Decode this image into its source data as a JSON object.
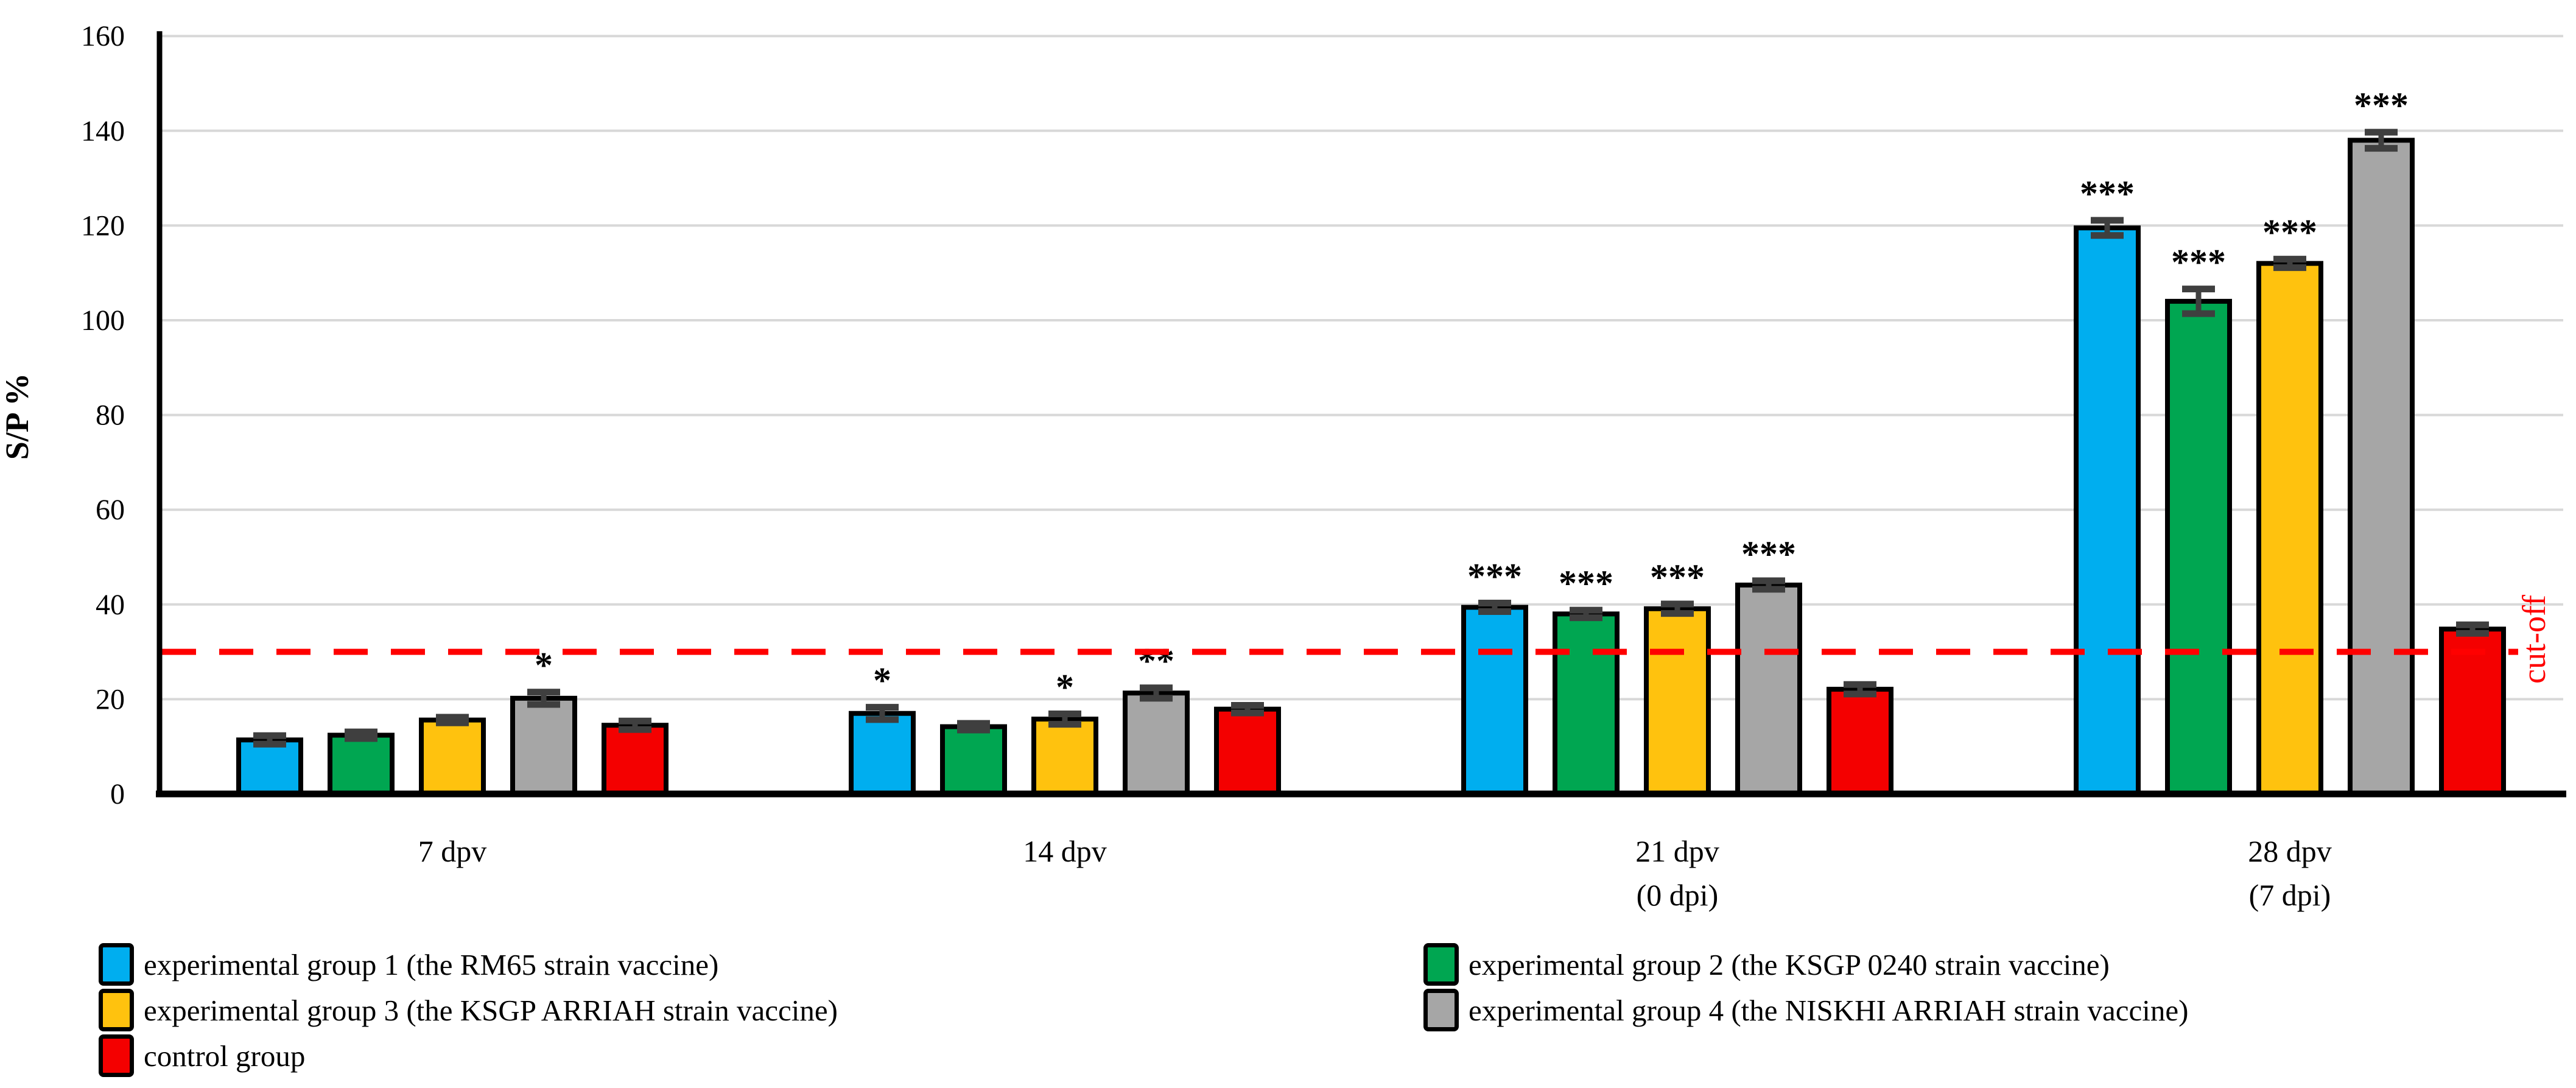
{
  "figure": {
    "background": "#FFFFFF"
  },
  "y_axis": {
    "title": "S/P %",
    "min": 0,
    "max": 160,
    "step": 20,
    "ticks": [
      "0",
      "20",
      "40",
      "60",
      "80",
      "100",
      "120",
      "140",
      "160"
    ]
  },
  "x_axis": {
    "labels": [
      [
        "7 dpv"
      ],
      [
        "14 dpv"
      ],
      [
        "21 dpv",
        "(0 dpi)"
      ],
      [
        "28 dpv",
        "(7 dpi)"
      ]
    ]
  },
  "cutoff": {
    "label": "cut-off",
    "value": 30,
    "color": "#FF0000"
  },
  "chart_data": {
    "type": "bar",
    "title": "",
    "xlabel": "",
    "ylabel": "S/P %",
    "ylim": [
      0,
      160
    ],
    "ytick_step": 20,
    "grid": "horizontal",
    "legend_position": "bottom-two-columns",
    "categories": [
      "7 dpv",
      "14 dpv",
      "21 dpv (0 dpi)",
      "28 dpv (7 dpi)"
    ],
    "cutoff_line": {
      "value": 30,
      "label": "cut-off",
      "style": "dashed",
      "color": "#FF0000"
    },
    "series": [
      {
        "name": "experimental group 1 (the RM65 strain vaccine)",
        "color": "#00AEEF",
        "values": [
          11.4,
          17.0,
          39.4,
          119.5
        ],
        "errors": [
          0.9,
          1.3,
          0.9,
          1.6
        ],
        "significance": [
          "",
          "*",
          "***",
          "***"
        ]
      },
      {
        "name": "experimental group 2 (the KSGP 0240 strain vaccine)",
        "color": "#00A651",
        "values": [
          12.4,
          14.2,
          38.0,
          104.0
        ],
        "errors": [
          0.7,
          0.7,
          0.8,
          2.6
        ],
        "significance": [
          "",
          "",
          "***",
          "***"
        ]
      },
      {
        "name": "experimental group 3 (the KSGP ARRIAH strain vaccine)",
        "color": "#FFC20E",
        "values": [
          15.6,
          15.8,
          39.1,
          112.0
        ],
        "errors": [
          0.6,
          1.1,
          1.0,
          0.9
        ],
        "significance": [
          "",
          "*",
          "***",
          "***"
        ]
      },
      {
        "name": "experimental group 4 (the NISKHI ARRIAH strain vaccine)",
        "color": "#A6A6A6",
        "values": [
          20.2,
          21.3,
          44.1,
          138.0
        ],
        "errors": [
          1.3,
          1.1,
          0.9,
          1.7
        ],
        "significance": [
          "*",
          "**",
          "***",
          "***"
        ]
      },
      {
        "name": "control group",
        "color": "#F40000",
        "values": [
          14.5,
          17.9,
          22.1,
          34.8
        ],
        "errors": [
          0.9,
          0.8,
          1.0,
          0.9
        ],
        "significance": [
          "",
          "",
          "",
          ""
        ]
      }
    ],
    "legend_columns": {
      "column1_series": [
        0,
        2,
        4
      ],
      "column2_series": [
        1,
        3
      ]
    }
  }
}
